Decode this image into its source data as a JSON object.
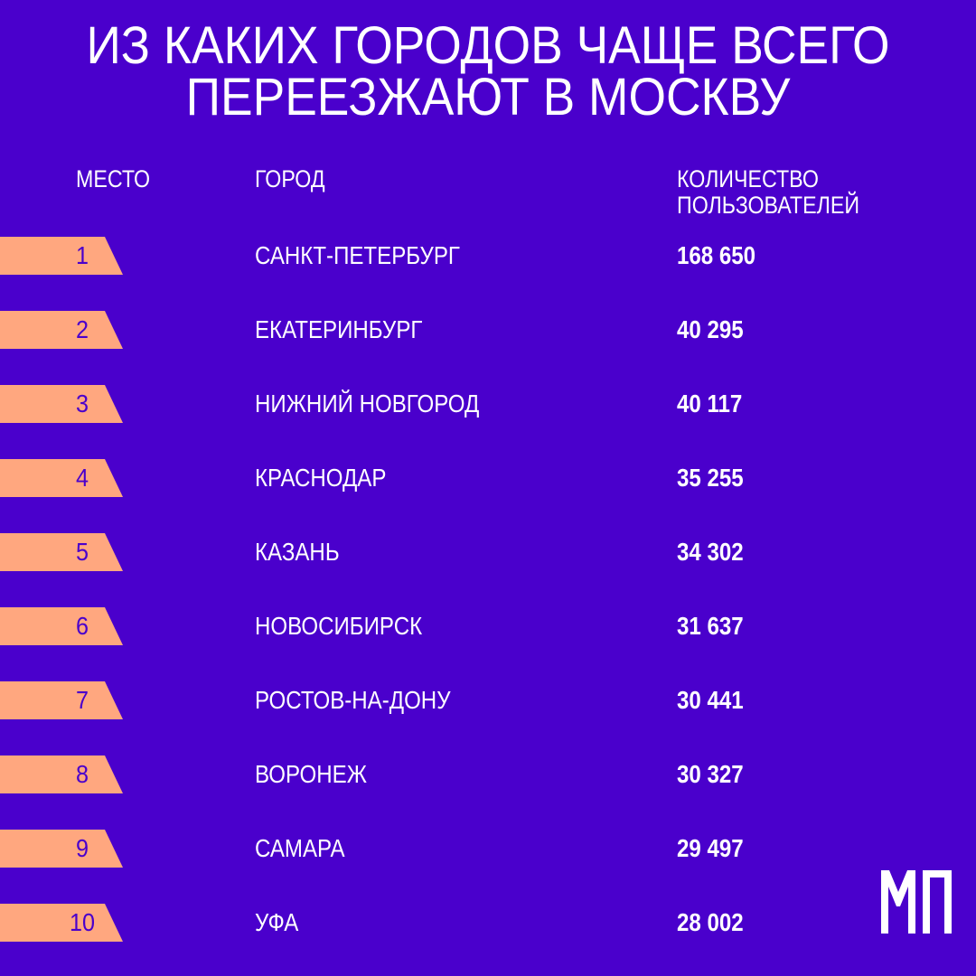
{
  "title": {
    "line1": "ИЗ КАКИХ ГОРОДОВ ЧАЩЕ ВСЕГО",
    "line2": "ПЕРЕЕЗЖАЮТ В МОСКВУ"
  },
  "headers": {
    "place": "МЕСТО",
    "city": "ГОРОД",
    "count_line1": "КОЛИЧЕСТВО",
    "count_line2": "ПОЛЬЗОВАТЕЛЕЙ"
  },
  "rows": [
    {
      "place": "1",
      "city": "САНКТ-ПЕТЕРБУРГ",
      "count": "168 650"
    },
    {
      "place": "2",
      "city": "ЕКАТЕРИНБУРГ",
      "count": "40 295"
    },
    {
      "place": "3",
      "city": "НИЖНИЙ НОВГОРОД",
      "count": "40 117"
    },
    {
      "place": "4",
      "city": "КРАСНОДАР",
      "count": "35 255"
    },
    {
      "place": "5",
      "city": "КАЗАНЬ",
      "count": "34 302"
    },
    {
      "place": "6",
      "city": "НОВОСИБИРСК",
      "count": "31 637"
    },
    {
      "place": "7",
      "city": "РОСТОВ-НА-ДОНУ",
      "count": "30 441"
    },
    {
      "place": "8",
      "city": "ВОРОНЕЖ",
      "count": "30 327"
    },
    {
      "place": "9",
      "city": "САМАРА",
      "count": "29 497"
    },
    {
      "place": "10",
      "city": "УФА",
      "count": "28 002"
    }
  ],
  "logo": {
    "icon": "mp-logo-icon"
  },
  "colors": {
    "background": "#4a00cc",
    "tag": "#ffa77f",
    "text": "#ffffff"
  }
}
